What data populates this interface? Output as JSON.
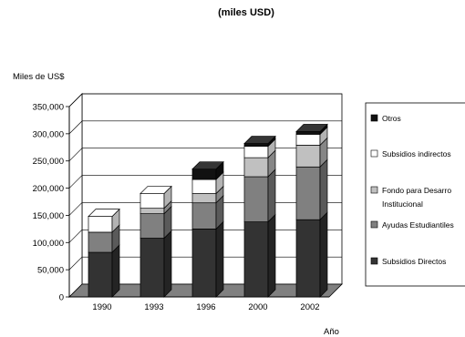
{
  "chart_data": {
    "type": "bar",
    "stacked": true,
    "three_d": true,
    "title": "(miles USD)",
    "ylabel": "Miles de US$",
    "xlabel": "Año",
    "categories": [
      "1990",
      "1993",
      "1996",
      "2000",
      "2002"
    ],
    "ylim": [
      0,
      350000
    ],
    "yticks": [
      0,
      50000,
      100000,
      150000,
      200000,
      250000,
      300000,
      350000
    ],
    "ytick_labels": [
      "0",
      "50,000",
      "100,000",
      "150,000",
      "200,000",
      "250,000",
      "300,000",
      "350,000"
    ],
    "grid": true,
    "legend_position": "right",
    "series": [
      {
        "name": "Subsidios Directos",
        "color": "#333333",
        "values": [
          82000,
          108000,
          125000,
          138000,
          142000
        ]
      },
      {
        "name": "Ayudas Estudiantiles",
        "color": "#808080",
        "values": [
          37000,
          45000,
          48000,
          83000,
          97000
        ]
      },
      {
        "name": "Fondo para Desarrollo Institucional",
        "color": "#c0c0c0",
        "values": [
          0,
          10000,
          17000,
          35000,
          40000
        ]
      },
      {
        "name": "Subsidios indirectos",
        "color": "#ffffff",
        "values": [
          29000,
          27000,
          26000,
          21000,
          20000
        ]
      },
      {
        "name": "Otros",
        "color": "#111111",
        "values": [
          0,
          0,
          19000,
          5000,
          5000
        ]
      }
    ],
    "legend_labels": [
      "Otros",
      "Subsidios indirectos",
      "Fondo para Desarro",
      "Institucional",
      "Ayudas Estudiantiles",
      "Subsidios Directos"
    ]
  }
}
